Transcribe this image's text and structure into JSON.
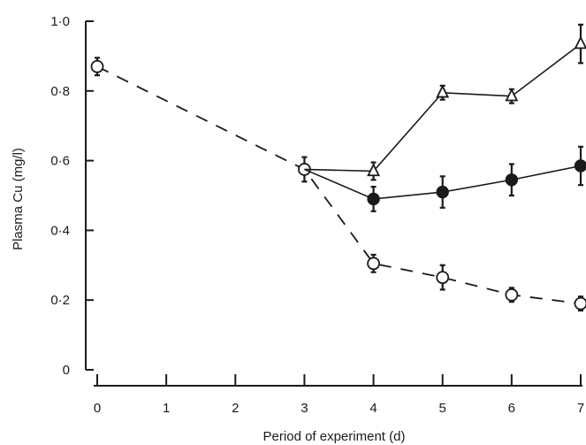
{
  "chart_data": {
    "type": "line",
    "xlabel": "Period of experiment (d)",
    "ylabel": "Plasma Cu (mg/l)",
    "xlim": [
      0,
      7
    ],
    "ylim": [
      0,
      1.0
    ],
    "x_ticks": [
      "0",
      "1",
      "2",
      "3",
      "4",
      "5",
      "6",
      "7"
    ],
    "y_ticks": [
      "0",
      "0·2",
      "0·4",
      "0·6",
      "0·8",
      "1·0"
    ],
    "grid": false,
    "legend": "none",
    "series": [
      {
        "marker": "open-circle",
        "line": "dashed",
        "points": [
          {
            "x": 0,
            "y": 0.87,
            "err": 0.02
          },
          {
            "x": 3,
            "y": 0.575,
            "err": 0.03
          },
          {
            "x": 4,
            "y": 0.305,
            "err": 0.02
          },
          {
            "x": 5,
            "y": 0.265,
            "err": 0.03
          },
          {
            "x": 6,
            "y": 0.215,
            "err": 0.015
          },
          {
            "x": 7,
            "y": 0.19,
            "err": 0.015
          }
        ]
      },
      {
        "marker": "open-triangle",
        "line": "solid",
        "points": [
          {
            "x": 3,
            "y": 0.575,
            "err": 0.03
          },
          {
            "x": 4,
            "y": 0.57,
            "err": 0.02
          },
          {
            "x": 5,
            "y": 0.795,
            "err": 0.015
          },
          {
            "x": 6,
            "y": 0.785,
            "err": 0.015
          },
          {
            "x": 7,
            "y": 0.935,
            "err": 0.05
          }
        ]
      },
      {
        "marker": "filled-circle",
        "line": "solid",
        "points": [
          {
            "x": 3,
            "y": 0.575,
            "err": 0.03
          },
          {
            "x": 4,
            "y": 0.49,
            "err": 0.03
          },
          {
            "x": 5,
            "y": 0.51,
            "err": 0.04
          },
          {
            "x": 6,
            "y": 0.545,
            "err": 0.04
          },
          {
            "x": 7,
            "y": 0.585,
            "err": 0.05
          }
        ]
      }
    ]
  }
}
